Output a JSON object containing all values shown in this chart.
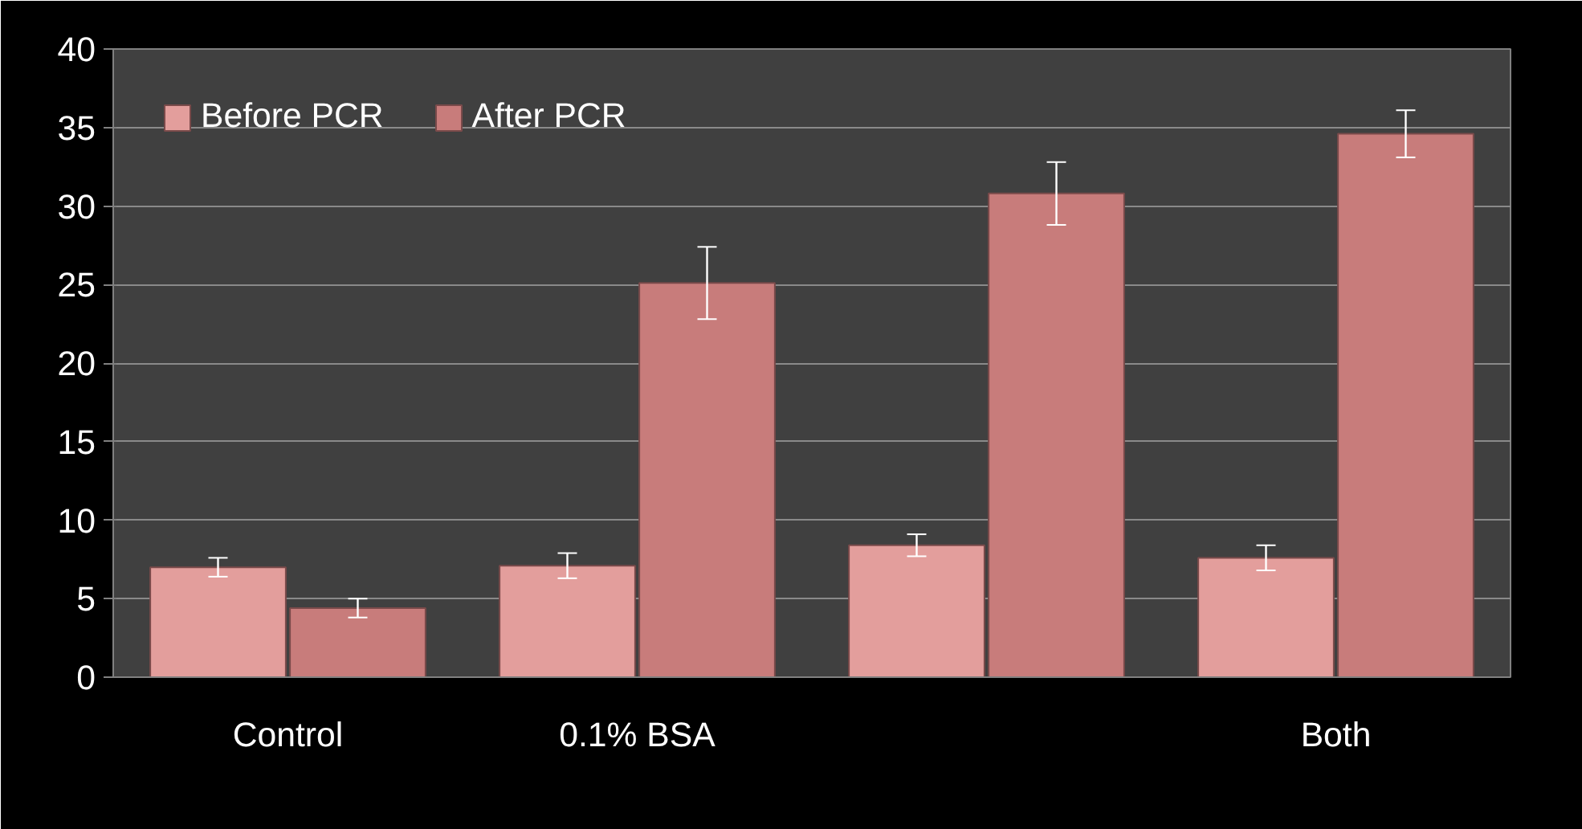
{
  "chart_data": {
    "type": "bar",
    "categories": [
      "Control",
      "0.1% BSA",
      null,
      "Both"
    ],
    "series": [
      {
        "name": "Before PCR",
        "color": "#e39e9c",
        "values": [
          7.0,
          7.1,
          8.4,
          7.6
        ],
        "errors": [
          0.6,
          0.8,
          0.7,
          0.8
        ]
      },
      {
        "name": "After PCR",
        "color": "#c87c7b",
        "values": [
          4.4,
          25.1,
          30.8,
          34.6
        ],
        "errors": [
          0.6,
          2.3,
          2.0,
          1.5
        ]
      }
    ],
    "ylim": [
      0,
      40
    ],
    "yticks": [
      0,
      5,
      10,
      15,
      20,
      25,
      30,
      35,
      40
    ],
    "grid": "y",
    "legend": "top left"
  }
}
